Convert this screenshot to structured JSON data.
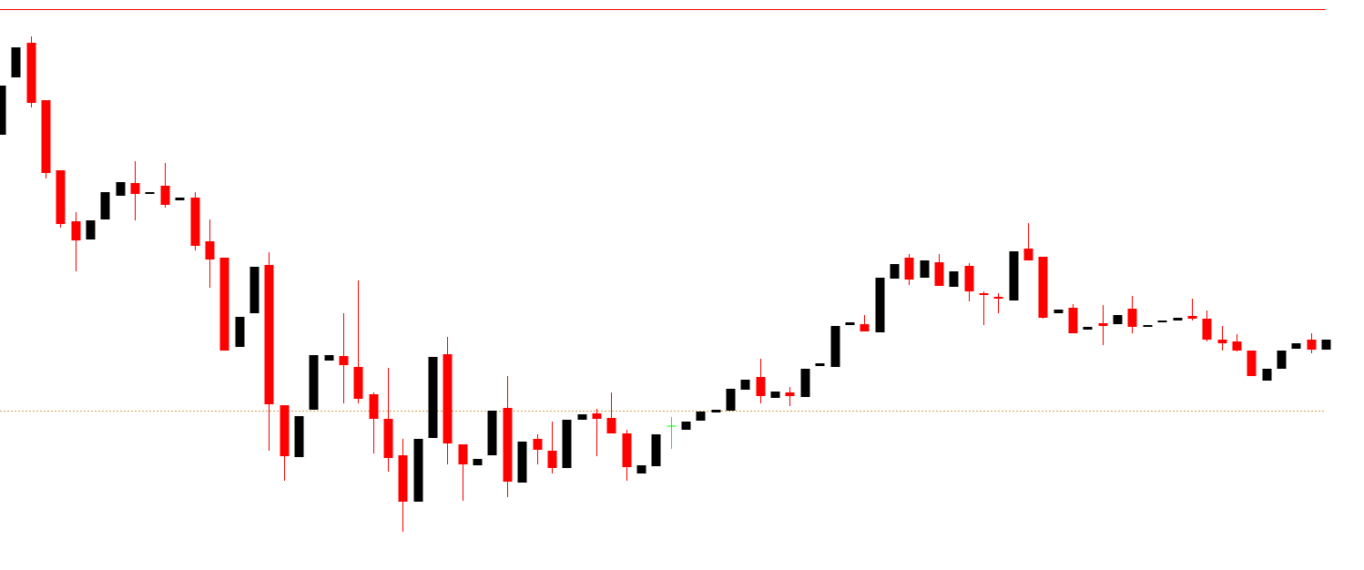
{
  "chart_data": {
    "type": "candlestick",
    "ylim": [
      0,
      626
    ],
    "up_color": "#000000",
    "down_color": "#ff0000",
    "doji_color": "#00ff00",
    "levels": [
      {
        "value": 616,
        "color": "#ff0000",
        "style": "solid"
      },
      {
        "value": 175,
        "color": "#d2a04b",
        "style": "dotted"
      }
    ],
    "open": [
      478,
      541,
      579,
      516,
      439,
      383,
      363,
      385,
      411,
      425,
      413,
      422,
      406,
      409,
      361,
      343,
      245,
      282,
      335,
      181,
      124,
      176,
      230,
      235,
      223,
      193,
      166,
      126,
      75,
      145,
      237,
      138,
      115,
      126,
      178,
      96,
      144,
      131,
      112,
      165,
      172,
      167,
      150,
      106,
      114,
      158,
      154,
      164,
      173,
      175,
      198,
      212,
      189,
      195,
      190,
      224,
      223,
      269,
      270,
      261,
      320,
      343,
      321,
      338,
      311,
      334,
      304,
      300,
      296,
      353,
      344,
      282,
      288,
      264,
      271,
      270,
      287,
      267,
      272,
      274,
      279,
      276,
      253,
      251,
      241,
      208,
      221,
      243,
      253,
      242
    ],
    "high": [
      532,
      574,
      586,
      516,
      439,
      393,
      384,
      415,
      426,
      449,
      415,
      447,
      409,
      415,
      385,
      343,
      278,
      333,
      349,
      181,
      169,
      236,
      236,
      282,
      318,
      195,
      222,
      144,
      144,
      234,
      256,
      138,
      122,
      175,
      213,
      141,
      149,
      163,
      165,
      171,
      177,
      195,
      154,
      115,
      149,
      168,
      163,
      174,
      176,
      199,
      209,
      232,
      196,
      201,
      221,
      227,
      268,
      272,
      280,
      321,
      336,
      347,
      340,
      347,
      328,
      337,
      306,
      304,
      350,
      381,
      344,
      286,
      292,
      267,
      291,
      280,
      301,
      269,
      274,
      277,
      298,
      285,
      268,
      259,
      241,
      221,
      241,
      249,
      260,
      253
    ],
    "low": [
      478,
      541,
      508,
      430,
      376,
      328,
      363,
      385,
      411,
      384,
      413,
      398,
      406,
      351,
      310,
      241,
      245,
      282,
      131,
      98,
      124,
      176,
      230,
      183,
      183,
      128,
      108,
      42,
      75,
      145,
      116,
      76,
      115,
      126,
      80,
      96,
      116,
      106,
      112,
      165,
      125,
      150,
      98,
      106,
      114,
      133,
      154,
      164,
      173,
      175,
      198,
      183,
      189,
      180,
      190,
      224,
      223,
      269,
      262,
      261,
      320,
      313,
      321,
      312,
      311,
      295,
      269,
      282,
      296,
      340,
      276,
      282,
      260,
      264,
      247,
      270,
      260,
      267,
      272,
      274,
      274,
      251,
      241,
      240,
      213,
      208,
      221,
      243,
      238,
      242
    ],
    "close": [
      532,
      574,
      513,
      436,
      380,
      362,
      384,
      415,
      426,
      413,
      415,
      401,
      409,
      356,
      341,
      241,
      278,
      333,
      182,
      125,
      169,
      236,
      236,
      225,
      188,
      166,
      123,
      75,
      144,
      234,
      139,
      116,
      122,
      175,
      97,
      141,
      132,
      112,
      165,
      171,
      166,
      150,
      113,
      115,
      149,
      158,
      163,
      174,
      176,
      199,
      209,
      191,
      196,
      191,
      221,
      227,
      268,
      272,
      262,
      321,
      336,
      319,
      340,
      312,
      328,
      306,
      302,
      298,
      350,
      340,
      277,
      286,
      260,
      267,
      268,
      280,
      267,
      269,
      274,
      277,
      276,
      253,
      249,
      241,
      213,
      221,
      241,
      249,
      242,
      253
    ]
  }
}
